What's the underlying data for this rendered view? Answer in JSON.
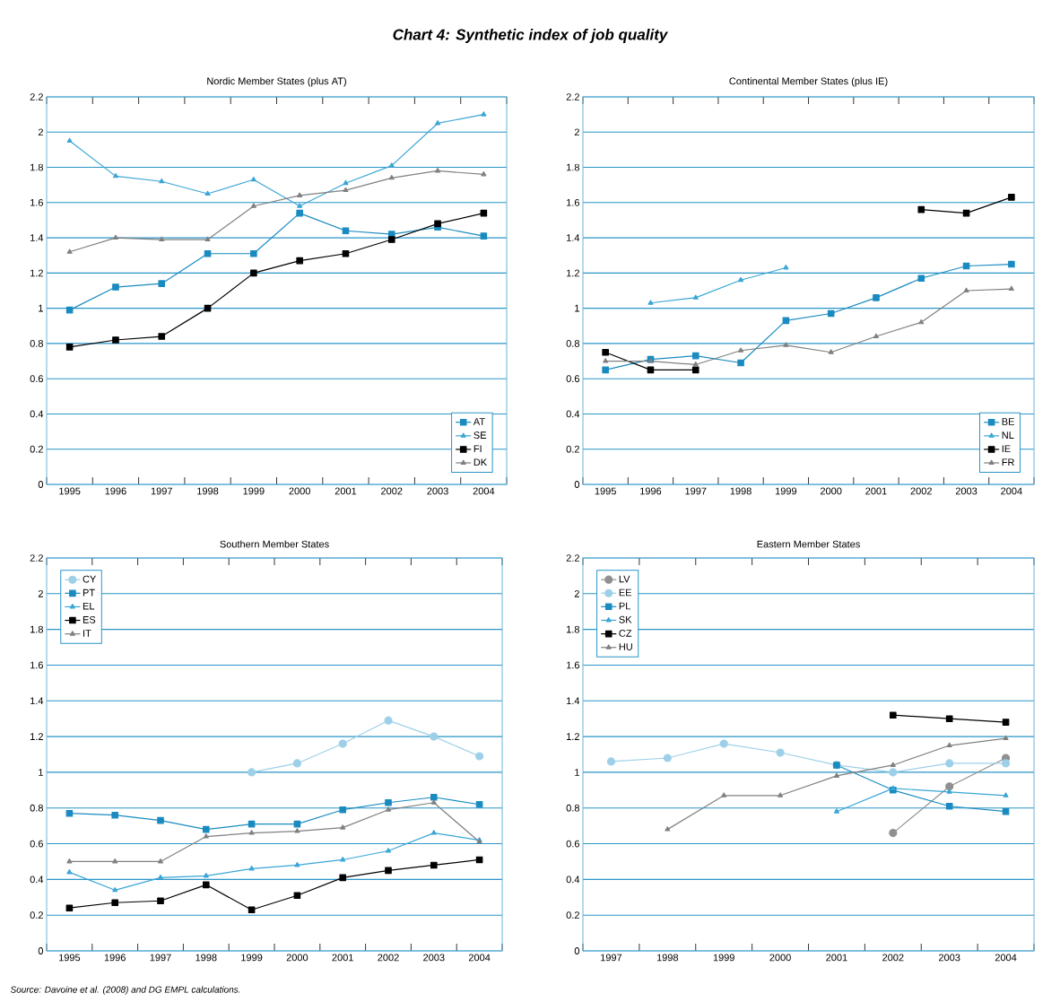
{
  "chart_data": [
    {
      "type": "other",
      "title": "Chart 4: Synthetic index of job quality",
      "annotations": [
        "Source: Davoine et al.  (2008) and DG EMPL calculations."
      ]
    },
    {
      "type": "line",
      "title": "Nordic Member States (plus AT)",
      "categories": [
        "1995",
        "1996",
        "1997",
        "1998",
        "1999",
        "2000",
        "2001",
        "2002",
        "2003",
        "2004"
      ],
      "ylim": [
        0,
        2.2
      ],
      "yticks": [
        0,
        0.2,
        0.4,
        0.6,
        0.8,
        1,
        1.2,
        1.4,
        1.6,
        1.8,
        2,
        2.2
      ],
      "grid": "y",
      "legend": "bottom right",
      "series": [
        {
          "name": "AT",
          "color": "#1a8bc0",
          "marker": "square",
          "values": [
            0.99,
            1.12,
            1.14,
            1.31,
            1.31,
            1.54,
            1.44,
            1.42,
            1.46,
            1.41
          ]
        },
        {
          "name": "SE",
          "color": "#3aa6d6",
          "marker": "triangle",
          "values": [
            1.95,
            1.75,
            1.72,
            1.65,
            1.73,
            1.58,
            1.71,
            1.81,
            2.05,
            2.1
          ]
        },
        {
          "name": "FI",
          "color": "#000000",
          "marker": "square",
          "values": [
            0.78,
            0.82,
            0.84,
            1.0,
            1.2,
            1.27,
            1.31,
            1.39,
            1.48,
            1.54
          ]
        },
        {
          "name": "DK",
          "color": "#808080",
          "marker": "triangle",
          "values": [
            1.32,
            1.4,
            1.39,
            1.39,
            1.58,
            1.64,
            1.67,
            1.74,
            1.78,
            1.76
          ]
        }
      ]
    },
    {
      "type": "line",
      "title": "Continental Member States (plus IE)",
      "categories": [
        "1995",
        "1996",
        "1997",
        "1998",
        "1999",
        "2000",
        "2001",
        "2002",
        "2003",
        "2004"
      ],
      "ylim": [
        0,
        2.2
      ],
      "yticks": [
        0,
        0.2,
        0.4,
        0.6,
        0.8,
        1,
        1.2,
        1.4,
        1.6,
        1.8,
        2,
        2.2
      ],
      "grid": "y",
      "legend": "bottom right",
      "series": [
        {
          "name": "BE",
          "color": "#1a8bc0",
          "marker": "square",
          "values": [
            0.65,
            0.71,
            0.73,
            0.69,
            0.93,
            0.97,
            1.06,
            1.17,
            1.24,
            1.25
          ]
        },
        {
          "name": "NL",
          "color": "#3aa6d6",
          "marker": "triangle",
          "values": [
            null,
            1.03,
            1.06,
            1.16,
            1.23,
            null,
            null,
            null,
            null,
            null
          ]
        },
        {
          "name": "IE",
          "color": "#000000",
          "marker": "square",
          "values": [
            0.75,
            0.65,
            0.65,
            null,
            null,
            null,
            null,
            1.56,
            1.54,
            1.63
          ]
        },
        {
          "name": "FR",
          "color": "#808080",
          "marker": "triangle",
          "values": [
            0.7,
            0.7,
            0.68,
            0.76,
            0.79,
            0.75,
            0.84,
            0.92,
            1.1,
            1.11
          ]
        }
      ]
    },
    {
      "type": "line",
      "title": "Southern Member States",
      "categories": [
        "1995",
        "1996",
        "1997",
        "1998",
        "1999",
        "2000",
        "2001",
        "2002",
        "2003",
        "2004"
      ],
      "ylim": [
        0,
        2.2
      ],
      "yticks": [
        0,
        0.2,
        0.4,
        0.6,
        0.8,
        1,
        1.2,
        1.4,
        1.6,
        1.8,
        2,
        2.2
      ],
      "grid": "y",
      "legend": "top left",
      "series": [
        {
          "name": "CY",
          "color": "#9dd0e8",
          "marker": "circle",
          "values": [
            null,
            null,
            null,
            null,
            1.0,
            1.05,
            1.16,
            1.29,
            1.2,
            1.09
          ]
        },
        {
          "name": "PT",
          "color": "#1a8bc0",
          "marker": "square",
          "values": [
            0.77,
            0.76,
            0.73,
            0.68,
            0.71,
            0.71,
            0.79,
            0.83,
            0.86,
            0.82
          ]
        },
        {
          "name": "EL",
          "color": "#3aa6d6",
          "marker": "triangle",
          "values": [
            0.44,
            0.34,
            0.41,
            0.42,
            0.46,
            0.48,
            0.51,
            0.56,
            0.66,
            0.62
          ]
        },
        {
          "name": "ES",
          "color": "#000000",
          "marker": "square",
          "values": [
            0.24,
            0.27,
            0.28,
            0.37,
            0.23,
            0.31,
            0.41,
            0.45,
            0.48,
            0.51
          ]
        },
        {
          "name": "IT",
          "color": "#808080",
          "marker": "triangle",
          "values": [
            0.5,
            0.5,
            0.5,
            0.64,
            0.66,
            0.67,
            0.69,
            0.79,
            0.83,
            0.61
          ]
        }
      ]
    },
    {
      "type": "line",
      "title": "Eastern Member States",
      "categories": [
        "1997",
        "1998",
        "1999",
        "2000",
        "2001",
        "2002",
        "2003",
        "2004"
      ],
      "ylim": [
        0,
        2.2
      ],
      "yticks": [
        0,
        0.2,
        0.4,
        0.6,
        0.8,
        1,
        1.2,
        1.4,
        1.6,
        1.8,
        2,
        2.2
      ],
      "grid": "y",
      "legend": "top left",
      "series": [
        {
          "name": "LV",
          "color": "#909090",
          "marker": "circle",
          "values": [
            null,
            null,
            null,
            null,
            null,
            0.66,
            0.92,
            1.08
          ]
        },
        {
          "name": "EE",
          "color": "#9dd0e8",
          "marker": "circle",
          "values": [
            1.06,
            1.08,
            1.16,
            1.11,
            1.04,
            1.0,
            1.05,
            1.05
          ]
        },
        {
          "name": "PL",
          "color": "#1a8bc0",
          "marker": "square",
          "values": [
            null,
            null,
            null,
            null,
            1.04,
            0.9,
            0.81,
            0.78
          ]
        },
        {
          "name": "SK",
          "color": "#3aa6d6",
          "marker": "triangle",
          "values": [
            null,
            null,
            null,
            null,
            0.78,
            0.91,
            0.89,
            0.87
          ]
        },
        {
          "name": "CZ",
          "color": "#000000",
          "marker": "square",
          "values": [
            null,
            null,
            null,
            null,
            null,
            1.32,
            1.3,
            1.28
          ]
        },
        {
          "name": "HU",
          "color": "#808080",
          "marker": "triangle",
          "values": [
            null,
            0.68,
            0.87,
            0.87,
            0.98,
            1.04,
            1.15,
            1.19
          ]
        }
      ]
    }
  ]
}
